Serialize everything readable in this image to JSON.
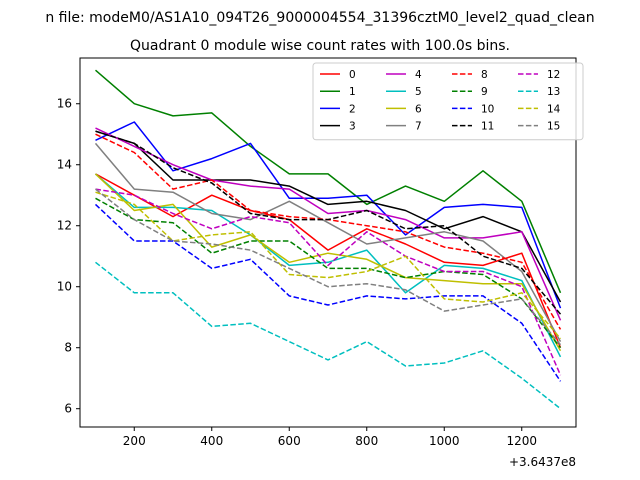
{
  "chart_data": {
    "type": "line",
    "suptitle": "n file: modeM0/AS1A10_094T26_9000004554_31396cztM0_level2_quad_clean",
    "title": "Quadrant 0 module wise count rates with 100.0s bins.",
    "xlabel": "",
    "ylabel": "",
    "x_offset_text": "+3.6437e8",
    "xlim": [
      60,
      1340
    ],
    "ylim": [
      5.4,
      17.5
    ],
    "xticks": [
      200,
      400,
      600,
      800,
      1000,
      1200
    ],
    "xtick_labels": [
      "200",
      "400",
      "600",
      "800",
      "1000",
      "1200"
    ],
    "yticks": [
      6,
      8,
      10,
      12,
      14,
      16
    ],
    "ytick_labels": [
      "6",
      "8",
      "10",
      "12",
      "14",
      "16"
    ],
    "legend_position": "upper-right",
    "legend_columns": 4,
    "x": [
      100,
      200,
      300,
      400,
      500,
      600,
      700,
      800,
      900,
      1000,
      1100,
      1200,
      1300
    ],
    "series": [
      {
        "name": "0",
        "color": "#ff0000",
        "dash": "solid",
        "values": [
          13.7,
          13.0,
          12.3,
          13.0,
          12.5,
          12.2,
          11.2,
          11.9,
          11.4,
          10.8,
          10.7,
          11.1,
          8.0
        ]
      },
      {
        "name": "1",
        "color": "#008000",
        "dash": "solid",
        "values": [
          17.1,
          16.0,
          15.6,
          15.7,
          14.6,
          13.7,
          13.7,
          12.7,
          13.3,
          12.8,
          13.8,
          12.8,
          9.8
        ]
      },
      {
        "name": "2",
        "color": "#0000ff",
        "dash": "solid",
        "values": [
          14.8,
          15.4,
          13.8,
          14.2,
          14.7,
          12.9,
          12.9,
          13.0,
          11.7,
          12.6,
          12.7,
          12.6,
          9.3
        ]
      },
      {
        "name": "3",
        "color": "#000000",
        "dash": "solid",
        "values": [
          15.1,
          14.7,
          13.5,
          13.5,
          13.5,
          13.3,
          12.7,
          12.8,
          12.5,
          11.9,
          12.3,
          11.8,
          9.5
        ]
      },
      {
        "name": "4",
        "color": "#bf00bf",
        "dash": "solid",
        "values": [
          15.2,
          14.6,
          14.0,
          13.5,
          13.3,
          13.2,
          12.4,
          12.5,
          12.2,
          11.6,
          11.6,
          11.8,
          8.9
        ]
      },
      {
        "name": "5",
        "color": "#00bfbf",
        "dash": "solid",
        "values": [
          13.7,
          12.6,
          12.6,
          12.5,
          11.7,
          10.7,
          10.8,
          11.2,
          9.8,
          10.7,
          10.6,
          10.2,
          7.7
        ]
      },
      {
        "name": "6",
        "color": "#bfbf00",
        "dash": "solid",
        "values": [
          13.7,
          12.5,
          12.7,
          11.3,
          11.7,
          10.8,
          11.1,
          10.9,
          10.3,
          10.2,
          10.1,
          10.1,
          7.9
        ]
      },
      {
        "name": "7",
        "color": "#808080",
        "dash": "solid",
        "values": [
          14.7,
          13.2,
          13.1,
          12.4,
          12.2,
          12.8,
          12.1,
          11.4,
          11.6,
          11.8,
          11.5,
          10.5,
          8.2
        ]
      },
      {
        "name": "8",
        "color": "#ff0000",
        "dash": "dashed",
        "values": [
          15.0,
          14.4,
          13.2,
          13.5,
          12.5,
          12.3,
          12.2,
          12.0,
          11.8,
          11.3,
          11.1,
          10.8,
          8.6
        ]
      },
      {
        "name": "9",
        "color": "#008000",
        "dash": "dashed",
        "values": [
          12.9,
          12.2,
          12.1,
          11.1,
          11.5,
          11.5,
          10.6,
          10.6,
          10.3,
          10.5,
          10.4,
          9.6,
          8.0
        ]
      },
      {
        "name": "10",
        "color": "#0000ff",
        "dash": "dashed",
        "values": [
          12.7,
          11.5,
          11.5,
          10.6,
          10.9,
          9.7,
          9.4,
          9.7,
          9.6,
          9.7,
          9.7,
          8.8,
          6.9
        ]
      },
      {
        "name": "11",
        "color": "#000000",
        "dash": "dashed",
        "values": [
          15.1,
          14.7,
          13.9,
          13.4,
          12.4,
          12.2,
          12.2,
          12.5,
          11.9,
          12.0,
          11.0,
          10.6,
          9.1
        ]
      },
      {
        "name": "12",
        "color": "#bf00bf",
        "dash": "dashed",
        "values": [
          13.2,
          13.0,
          12.4,
          11.9,
          12.3,
          12.1,
          10.7,
          11.8,
          11.0,
          10.5,
          10.5,
          10.0,
          7.1
        ]
      },
      {
        "name": "13",
        "color": "#00bfbf",
        "dash": "dashed",
        "values": [
          10.8,
          9.8,
          9.8,
          8.7,
          8.8,
          8.2,
          7.6,
          8.2,
          7.4,
          7.5,
          7.9,
          7.0,
          6.0
        ]
      },
      {
        "name": "14",
        "color": "#bfbf00",
        "dash": "dashed",
        "values": [
          13.1,
          12.7,
          11.5,
          11.7,
          11.8,
          10.4,
          10.3,
          10.5,
          11.0,
          9.6,
          9.5,
          9.8,
          8.3
        ]
      },
      {
        "name": "15",
        "color": "#808080",
        "dash": "dashed",
        "values": [
          13.2,
          12.2,
          11.5,
          11.4,
          11.2,
          10.6,
          10.0,
          10.1,
          9.9,
          9.2,
          9.4,
          9.6,
          8.1
        ]
      }
    ]
  }
}
